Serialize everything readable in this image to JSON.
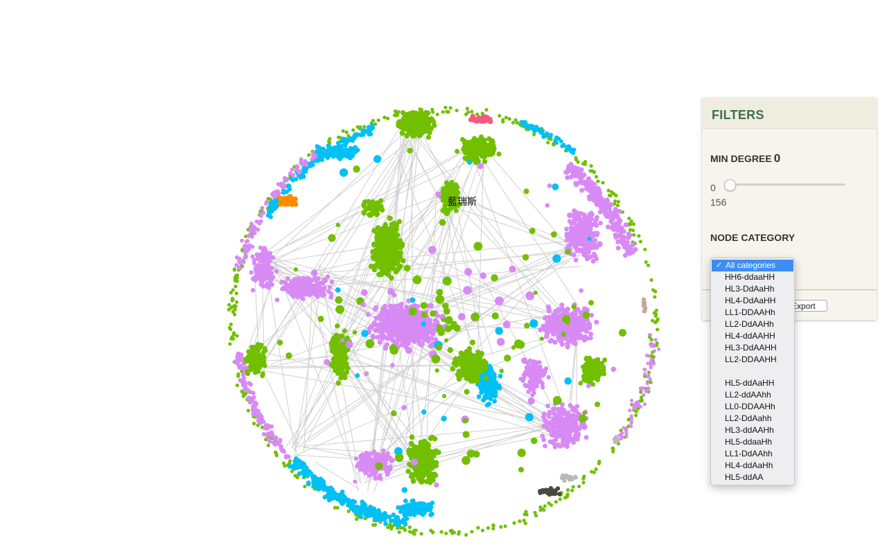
{
  "graph": {
    "label": "藍瑞斯",
    "colors": {
      "green": "#72bf00",
      "violet": "#d88af4",
      "cyan": "#00c0f5",
      "pink": "#f05a85",
      "orange": "#ff8b00",
      "gray": "#b8b8b8",
      "dark": "#4c4844",
      "rose": "#c9a6a6",
      "edge": "#cfcfcf"
    }
  },
  "filters": {
    "title": "FILTERS",
    "min_degree_label": "MIN DEGREE",
    "min_degree_value": "0",
    "range_min": "0",
    "range_max": "156",
    "node_category_label": "NODE CATEGORY",
    "export_label": "Export",
    "selected_category": "All categories",
    "category_options": [
      "All categories",
      "HH6-ddaaHH",
      "HL3-DdAaHh",
      "HL4-DdAaHH",
      "LL1-DDAAHh",
      "LL2-DdAAHh",
      "HL4-ddAAHH",
      "HL3-DdAAHH",
      "LL2-DDAAHH",
      "",
      "HL5-ddAaHH",
      "LL2-ddAAhh",
      "LL0-DDAAHh",
      "LL2-DdAahh",
      "HL3-ddAAHh",
      "HL5-ddaaHh",
      "LL1-DdAAhh",
      "HL4-ddAaHh",
      "HL5-ddAA"
    ]
  }
}
